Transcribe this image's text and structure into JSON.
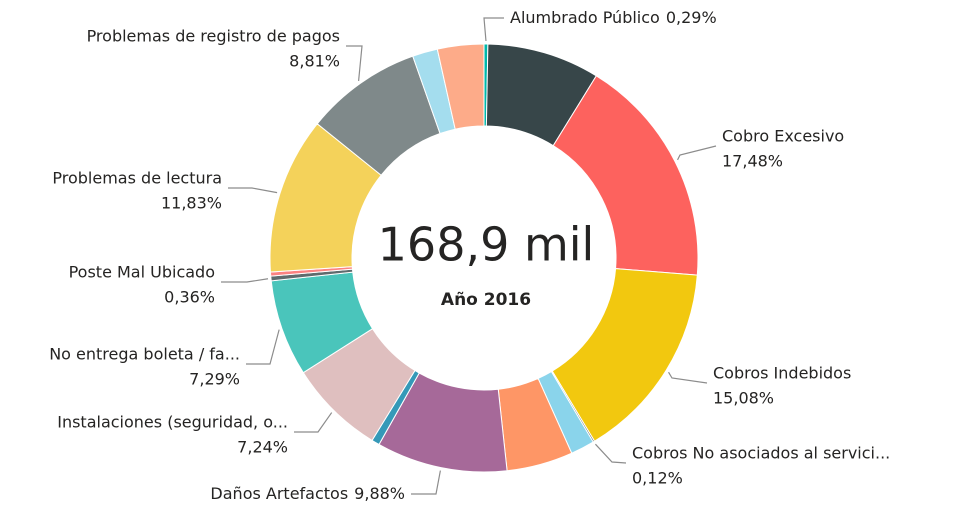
{
  "chart_data": {
    "type": "donut",
    "center_label": "168,9 mil",
    "subtitle": "Año 2016",
    "categories": [
      "Alumbrado Público",
      null,
      "Cobro Excesivo",
      "Cobros Indebidos",
      "Cobros No asociados al servici...",
      null,
      null,
      "Daños Artefactos",
      null,
      "Instalaciones (seguridad, o...",
      "No entrega boleta / fa...",
      "Poste Mal Ubicado",
      null,
      "Problemas de lectura",
      "Problemas de registro de pagos",
      null,
      null
    ],
    "values": [
      0.29,
      8.5,
      17.48,
      15.08,
      0.12,
      1.8,
      5.0,
      9.88,
      0.6,
      7.24,
      7.29,
      0.36,
      0.3,
      11.83,
      8.81,
      1.9,
      3.5
    ],
    "value_labels": [
      "0,29%",
      null,
      "17,48%",
      "15,08%",
      "0,12%",
      null,
      null,
      "9,88%",
      null,
      "7,24%",
      "7,29%",
      "0,36%",
      null,
      "11,83%",
      "8,81%",
      null,
      null
    ],
    "colors": [
      "#01b8aa",
      "#374649",
      "#fd625e",
      "#f2c80f",
      "#5f6b6d",
      "#8ad4eb",
      "#fe9666",
      "#a66999",
      "#3599b8",
      "#dfbfbf",
      "#4ac5bb",
      "#5f6b6d",
      "#fb8281",
      "#f4d25a",
      "#7f898a",
      "#a4ddee",
      "#fdab89"
    ]
  }
}
